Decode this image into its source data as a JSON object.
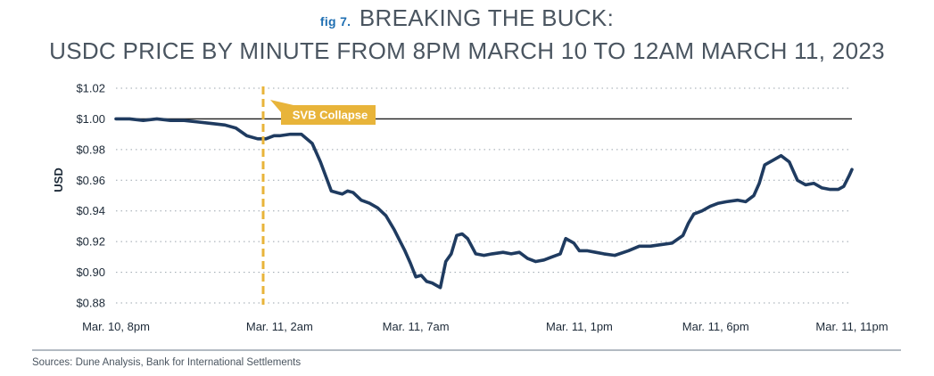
{
  "fig_label": "fig 7.",
  "title_line1": "BREAKING THE BUCK:",
  "title_line2": "USDC PRICE BY MINUTE FROM 8PM MARCH 10 TO 12AM MARCH 11, 2023",
  "source": "Sources: Dune Analysis, Bank for International Settlements",
  "colors": {
    "series": "#1f3b60",
    "annotation": "#e8b43a",
    "reference_line": "#1d1d1d",
    "grid": "#9aa4ad",
    "separator": "#9aa4ad"
  },
  "chart_data": {
    "type": "line",
    "ylabel": "USD",
    "xlabel": "",
    "ylim": [
      0.88,
      1.02
    ],
    "grid": "horizontal dotted",
    "y_ticks": [
      "$0.88",
      "$0.90",
      "$0.92",
      "$0.94",
      "$0.96",
      "$0.98",
      "$1.00",
      "$1.02"
    ],
    "y_tick_values": [
      0.88,
      0.9,
      0.92,
      0.94,
      0.96,
      0.98,
      1.0,
      1.02
    ],
    "x_ticks": [
      "Mar. 10, 8pm",
      "Mar. 11, 2am",
      "Mar. 11, 7am",
      "Mar. 11, 1pm",
      "Mar. 11, 6pm",
      "Mar. 11, 11pm"
    ],
    "x_tick_hours": [
      20,
      26,
      31,
      37,
      42,
      47
    ],
    "xlim_hours": [
      20,
      47
    ],
    "reference_line": {
      "y": 1.0
    },
    "annotation": {
      "label": "SVB Collapse",
      "x_hours": 25.4
    },
    "series": [
      {
        "x_hours": [
          20.0,
          20.5,
          21.0,
          21.5,
          22.0,
          22.5,
          23.0,
          23.5,
          24.0,
          24.4,
          24.8,
          25.2,
          25.5,
          25.8,
          26.0,
          26.4,
          26.8,
          27.2,
          27.5,
          27.9,
          28.3,
          28.5,
          28.7,
          29.0,
          29.3,
          29.6,
          29.9,
          30.2,
          30.4,
          30.6,
          30.8,
          31.0,
          31.2,
          31.4,
          31.6,
          31.9,
          32.1,
          32.3,
          32.5,
          32.7,
          32.9,
          33.2,
          33.5,
          33.8,
          34.2,
          34.5,
          34.8,
          35.1,
          35.4,
          35.7,
          36.0,
          36.3,
          36.5,
          36.8,
          37.0,
          37.3,
          37.6,
          37.9,
          38.3,
          38.8,
          39.2,
          39.6,
          40.0,
          40.4,
          40.8,
          41.0,
          41.2,
          41.5,
          41.8,
          42.1,
          42.4,
          42.8,
          43.1,
          43.4,
          43.6,
          43.8,
          44.1,
          44.4,
          44.7,
          45.0,
          45.3,
          45.6,
          45.9,
          46.2,
          46.5,
          46.7,
          46.9,
          47.0
        ],
        "values": [
          1.0,
          1.0,
          0.999,
          1.0,
          0.999,
          0.999,
          0.998,
          0.997,
          0.996,
          0.994,
          0.989,
          0.987,
          0.987,
          0.989,
          0.989,
          0.99,
          0.99,
          0.984,
          0.972,
          0.953,
          0.951,
          0.953,
          0.952,
          0.947,
          0.945,
          0.942,
          0.937,
          0.928,
          0.921,
          0.914,
          0.906,
          0.897,
          0.898,
          0.894,
          0.893,
          0.89,
          0.907,
          0.912,
          0.924,
          0.925,
          0.922,
          0.912,
          0.911,
          0.912,
          0.913,
          0.912,
          0.913,
          0.909,
          0.907,
          0.908,
          0.91,
          0.912,
          0.922,
          0.919,
          0.914,
          0.914,
          0.913,
          0.912,
          0.911,
          0.914,
          0.917,
          0.917,
          0.918,
          0.919,
          0.924,
          0.932,
          0.938,
          0.94,
          0.943,
          0.945,
          0.946,
          0.947,
          0.946,
          0.95,
          0.958,
          0.97,
          0.973,
          0.976,
          0.972,
          0.96,
          0.957,
          0.958,
          0.955,
          0.954,
          0.954,
          0.956,
          0.963,
          0.967
        ]
      }
    ]
  }
}
